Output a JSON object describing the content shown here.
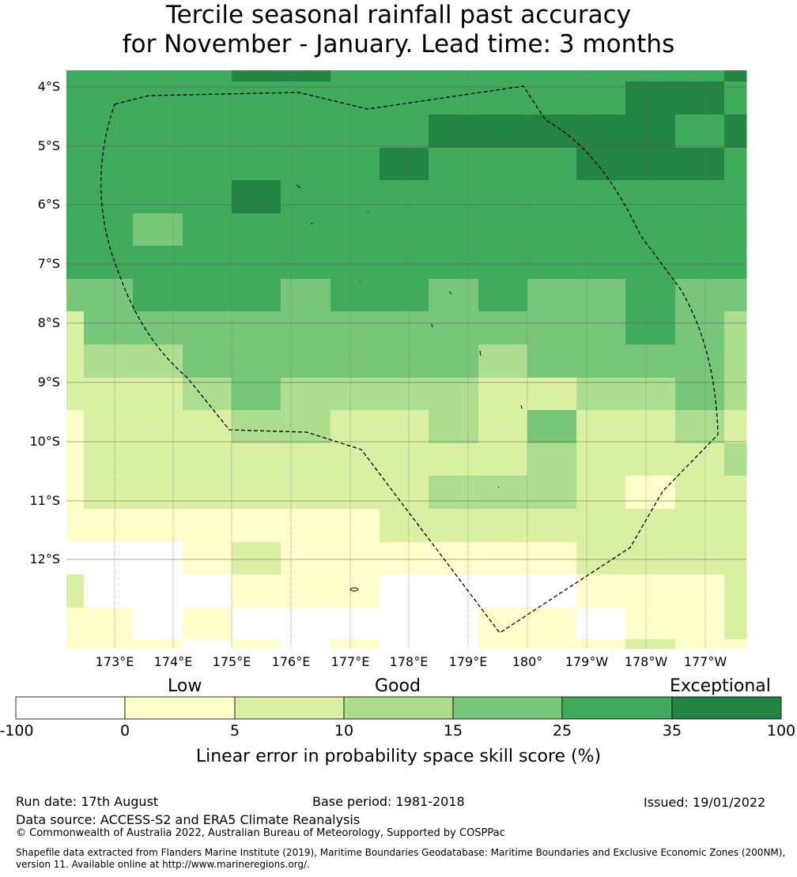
{
  "title": {
    "line1": "Tercile seasonal rainfall past accuracy",
    "line2": "for November - January. Lead time: 3 months"
  },
  "map": {
    "lat_labels": [
      "4°S",
      "5°S",
      "6°S",
      "7°S",
      "8°S",
      "9°S",
      "10°S",
      "11°S",
      "12°S"
    ],
    "lon_labels": [
      "173°E",
      "174°E",
      "175°E",
      "176°E",
      "177°E",
      "178°E",
      "179°E",
      "180°",
      "179°W",
      "178°W",
      "177°W"
    ],
    "grid_cols": 14,
    "grid_rows": 18,
    "skill_classes": [
      [
        5,
        5,
        5,
        5,
        5,
        5,
        5,
        6,
        6,
        6,
        6,
        5,
        5,
        5,
        5,
        5,
        5,
        5,
        5,
        5,
        5,
        5,
        5,
        5,
        5,
        5,
        5,
        5,
        5,
        5,
        5,
        5,
        5,
        5,
        5,
        5,
        5,
        5,
        5,
        5,
        5,
        5,
        5,
        5,
        5,
        5,
        5,
        6
      ],
      [
        5,
        5,
        5,
        5,
        5,
        5,
        5,
        5,
        5,
        5,
        5,
        5,
        5,
        5,
        5,
        5,
        5,
        5,
        5,
        5,
        5,
        5,
        5,
        5,
        5,
        5,
        5,
        5,
        5,
        5,
        5,
        5,
        5,
        5,
        5,
        5,
        5,
        5,
        5,
        5,
        5,
        5,
        5,
        5,
        5,
        5,
        5,
        5
      ]
    ],
    "_note": "cell classes listed row-by-row in script"
  },
  "legend": {
    "categories": [
      "Low",
      "Good",
      "Exceptional"
    ],
    "ticks": [
      "-100",
      "0",
      "5",
      "10",
      "15",
      "25",
      "35",
      "100"
    ],
    "colors": [
      "#ffffff",
      "#ffffcc",
      "#d9f0a3",
      "#addd8e",
      "#78c679",
      "#41ab5d",
      "#238443"
    ],
    "label": "Linear error in probability space skill score (%)"
  },
  "footer": {
    "run_date": "Run date: 17th August",
    "base_period": "Base period: 1981-2018",
    "issued": "Issued: 19/01/2022",
    "data_source": "Data source: ACCESS-S2 and ERA5 Climate Reanalysis",
    "copyright": "© Commonwealth of Australia 2022, Australian Bureau of Meteorology, Supported by COSPPac",
    "shapefile_line1": "Shapefile data extracted from Flanders Marine Institute (2019), Maritime Boundaries Geodatabase: Maritime Boundaries and Exclusive Economic Zones (200NM),",
    "shapefile_line2": "version 11. Available online at http://www.marineregions.org/."
  }
}
